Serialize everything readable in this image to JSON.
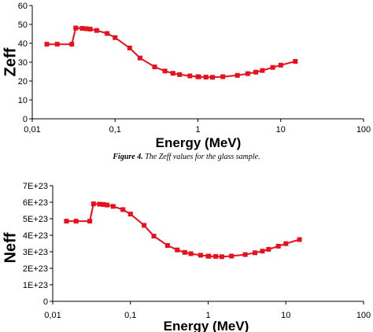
{
  "colors": {
    "series": "#e8101e",
    "axis": "#000000"
  },
  "caption": {
    "label": "Figure 4.",
    "text": " The Zeff values for the glass sample."
  },
  "chart_data": [
    {
      "type": "line",
      "xscale": "log",
      "xlim": [
        0.01,
        100
      ],
      "ylim": [
        0,
        60
      ],
      "x_ticks": [
        "0,01",
        "0,1",
        "1",
        "10",
        "100"
      ],
      "y_ticks": [
        "0",
        "10",
        "20",
        "30",
        "40",
        "50",
        "60"
      ],
      "ylabel": "Zeff",
      "xlabel": "Energy (MeV)",
      "grid": false,
      "marker": "square",
      "series": [
        {
          "x": [
            0.015,
            0.02,
            0.03,
            0.0335,
            0.04,
            0.045,
            0.05,
            0.06,
            0.08,
            0.1,
            0.15,
            0.2,
            0.3,
            0.4,
            0.5,
            0.6,
            0.8,
            1.0,
            1.022,
            1.25,
            1.5,
            2,
            3,
            4,
            5,
            6,
            8,
            10,
            15
          ],
          "y": [
            39.5,
            39.5,
            39.5,
            48.1,
            47.9,
            47.7,
            47.5,
            46.8,
            45.2,
            43,
            37.5,
            32.2,
            27.5,
            25.3,
            24.1,
            23.4,
            22.7,
            22.3,
            22.2,
            22.1,
            22,
            22.3,
            23,
            23.9,
            24.7,
            25.6,
            27.2,
            28.4,
            30.4
          ]
        }
      ]
    },
    {
      "type": "line",
      "xscale": "log",
      "xlim": [
        0.01,
        100
      ],
      "ylim": [
        0,
        7e+23
      ],
      "x_ticks": [
        "0,01",
        "0,1",
        "1",
        "10",
        "100"
      ],
      "y_ticks": [
        "0",
        "1E+23",
        "2E+23",
        "3E+23",
        "4E+23",
        "5E+23",
        "6E+23",
        "7E+23"
      ],
      "ylabel": "Neff",
      "xlabel": "Energy (MeV)",
      "grid": false,
      "marker": "square",
      "series": [
        {
          "x": [
            0.015,
            0.02,
            0.03,
            0.0335,
            0.04,
            0.045,
            0.05,
            0.06,
            0.08,
            0.1,
            0.15,
            0.2,
            0.3,
            0.4,
            0.5,
            0.6,
            0.8,
            1.0,
            1.022,
            1.25,
            1.5,
            2,
            3,
            4,
            5,
            6,
            8,
            10,
            15
          ],
          "y": [
            4.85e+23,
            4.85e+23,
            4.85e+23,
            5.9e+23,
            5.88e+23,
            5.86e+23,
            5.83e+23,
            5.75e+23,
            5.55e+23,
            5.28e+23,
            4.6e+23,
            3.95e+23,
            3.38e+23,
            3.11e+23,
            2.96e+23,
            2.88e+23,
            2.79e+23,
            2.74e+23,
            2.73e+23,
            2.72e+23,
            2.7e+23,
            2.74e+23,
            2.83e+23,
            2.94e+23,
            3.04e+23,
            3.15e+23,
            3.34e+23,
            3.49e+23,
            3.74e+23
          ]
        }
      ]
    }
  ]
}
